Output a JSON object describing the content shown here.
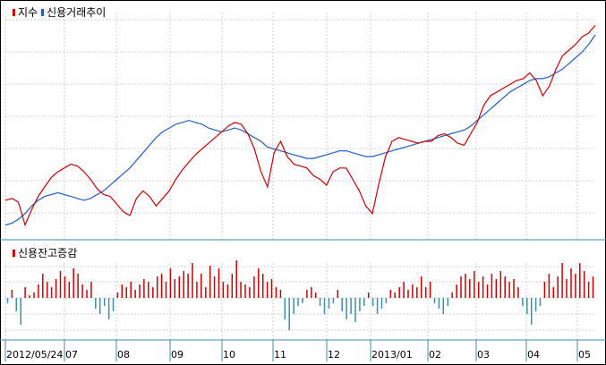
{
  "chart_data": [
    {
      "type": "line",
      "legend": [
        {
          "label": "지수",
          "color": "#cc0000"
        },
        {
          "label": "신용거래추이",
          "color": "#1f5fc4"
        }
      ],
      "series": [
        {
          "name": "지수",
          "color": "#cc0000",
          "values": [
            0.55,
            0.56,
            0.54,
            0.42,
            0.5,
            0.57,
            0.62,
            0.67,
            0.7,
            0.72,
            0.74,
            0.73,
            0.7,
            0.66,
            0.61,
            0.58,
            0.57,
            0.53,
            0.49,
            0.47,
            0.56,
            0.6,
            0.57,
            0.52,
            0.56,
            0.6,
            0.66,
            0.71,
            0.75,
            0.79,
            0.82,
            0.85,
            0.88,
            0.91,
            0.94,
            0.96,
            0.95,
            0.9,
            0.82,
            0.7,
            0.62,
            0.8,
            0.86,
            0.78,
            0.74,
            0.73,
            0.72,
            0.68,
            0.66,
            0.63,
            0.7,
            0.72,
            0.72,
            0.66,
            0.6,
            0.52,
            0.48,
            0.64,
            0.78,
            0.86,
            0.88,
            0.87,
            0.86,
            0.85,
            0.86,
            0.86,
            0.89,
            0.9,
            0.88,
            0.85,
            0.84,
            0.9,
            0.96,
            1.05,
            1.1,
            1.12,
            1.14,
            1.16,
            1.18,
            1.19,
            1.22,
            1.18,
            1.1,
            1.15,
            1.24,
            1.31,
            1.34,
            1.37,
            1.41,
            1.43,
            1.47
          ],
          "area_ref": "index"
        },
        {
          "name": "신용거래추이",
          "color": "#1f5fc4",
          "values": [
            0.42,
            0.43,
            0.45,
            0.48,
            0.52,
            0.55,
            0.57,
            0.58,
            0.59,
            0.58,
            0.57,
            0.56,
            0.55,
            0.56,
            0.58,
            0.6,
            0.63,
            0.66,
            0.69,
            0.72,
            0.76,
            0.8,
            0.84,
            0.88,
            0.91,
            0.93,
            0.95,
            0.96,
            0.97,
            0.96,
            0.95,
            0.93,
            0.92,
            0.91,
            0.92,
            0.93,
            0.92,
            0.9,
            0.88,
            0.86,
            0.83,
            0.82,
            0.81,
            0.8,
            0.79,
            0.78,
            0.77,
            0.77,
            0.78,
            0.79,
            0.8,
            0.81,
            0.81,
            0.8,
            0.79,
            0.78,
            0.78,
            0.79,
            0.8,
            0.81,
            0.82,
            0.83,
            0.84,
            0.85,
            0.86,
            0.87,
            0.88,
            0.89,
            0.9,
            0.91,
            0.92,
            0.94,
            0.97,
            1.0,
            1.03,
            1.06,
            1.09,
            1.12,
            1.14,
            1.16,
            1.18,
            1.19,
            1.19,
            1.2,
            1.22,
            1.24,
            1.27,
            1.3,
            1.33,
            1.37,
            1.42
          ]
        }
      ],
      "x_tick_labels": [
        "2012/05/24",
        "07",
        "08",
        "09",
        "10",
        "11",
        "12",
        "2013/01",
        "02",
        "03",
        "04",
        "05"
      ],
      "grid": true
    },
    {
      "type": "bar",
      "legend": [
        {
          "label": "신용잔고증감",
          "color": "#cc0000"
        }
      ],
      "positive_color": "#cc0000",
      "negative_color": "#3b8fa8",
      "values": [
        -0.2,
        0.3,
        -0.5,
        -1.0,
        0.4,
        0.1,
        0.2,
        0.5,
        0.9,
        0.6,
        0.4,
        0.7,
        1.0,
        0.8,
        0.6,
        1.1,
        0.9,
        0.5,
        0.3,
        0.6,
        -0.4,
        -0.6,
        -0.3,
        -0.8,
        -0.5,
        0.2,
        0.5,
        0.4,
        0.6,
        0.3,
        0.5,
        0.7,
        0.6,
        0.4,
        0.8,
        0.9,
        0.6,
        1.1,
        0.7,
        0.8,
        1.0,
        0.9,
        1.3,
        0.6,
        0.9,
        0.4,
        1.2,
        0.8,
        1.1,
        0.6,
        0.5,
        0.9,
        1.4,
        0.6,
        0.5,
        0.4,
        0.8,
        1.1,
        0.9,
        0.6,
        0.7,
        0.4,
        0.3,
        -0.8,
        -1.2,
        -0.6,
        -0.3,
        -0.2,
        0.3,
        0.4,
        0.2,
        -0.3,
        -0.6,
        -0.4,
        -0.2,
        0.3,
        -0.5,
        -0.8,
        -0.6,
        -0.9,
        -0.5,
        -0.3,
        0.2,
        -0.3,
        -0.6,
        -0.4,
        -0.2,
        0.3,
        0.2,
        0.4,
        0.6,
        0.3,
        0.5,
        0.4,
        0.8,
        0.4,
        0.6,
        -0.2,
        -0.4,
        -0.6,
        -0.3,
        0.2,
        0.5,
        0.8,
        0.9,
        0.7,
        1.0,
        0.6,
        0.8,
        0.5,
        0.9,
        0.7,
        1.0,
        0.8,
        0.6,
        0.7,
        0.4,
        -0.3,
        -0.6,
        -1.0,
        -0.5,
        -0.3,
        0.6,
        0.9,
        0.4,
        0.8,
        1.3,
        0.7,
        1.1,
        0.9,
        1.3,
        1.0,
        0.6,
        0.8
      ]
    }
  ]
}
